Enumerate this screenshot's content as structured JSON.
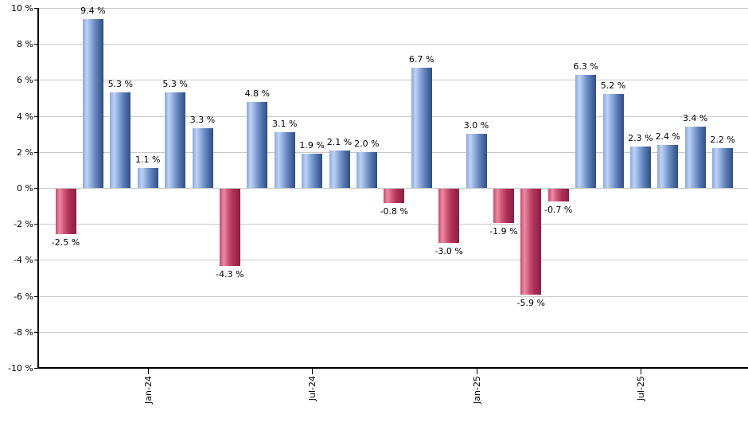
{
  "chart_data": {
    "type": "bar",
    "title": "",
    "unit": "%",
    "bars": [
      {
        "value": -2.5,
        "label": "-2.5 %"
      },
      {
        "value": 9.4,
        "label": "9.4 %"
      },
      {
        "value": 5.3,
        "label": "5.3 %"
      },
      {
        "value": 1.1,
        "label": "1.1 %"
      },
      {
        "value": 5.3,
        "label": "5.3 %"
      },
      {
        "value": 3.3,
        "label": "3.3 %"
      },
      {
        "value": -4.3,
        "label": "-4.3 %"
      },
      {
        "value": 4.8,
        "label": "4.8 %"
      },
      {
        "value": 3.1,
        "label": "3.1 %"
      },
      {
        "value": 1.9,
        "label": "1.9 %"
      },
      {
        "value": 2.1,
        "label": "2.1 %"
      },
      {
        "value": 2.0,
        "label": "2.0 %"
      },
      {
        "value": -0.8,
        "label": "-0.8 %"
      },
      {
        "value": 6.7,
        "label": "6.7 %"
      },
      {
        "value": -3.0,
        "label": "-3.0 %"
      },
      {
        "value": 3.0,
        "label": "3.0 %"
      },
      {
        "value": -1.9,
        "label": "-1.9 %"
      },
      {
        "value": -5.9,
        "label": "-5.9 %"
      },
      {
        "value": -0.7,
        "label": "-0.7 %"
      },
      {
        "value": 6.3,
        "label": "6.3 %"
      },
      {
        "value": 5.2,
        "label": "5.2 %"
      },
      {
        "value": 2.3,
        "label": "2.3 %"
      },
      {
        "value": 2.4,
        "label": "2.4 %"
      },
      {
        "value": 3.4,
        "label": "3.4 %"
      },
      {
        "value": 2.2,
        "label": "2.2 %"
      }
    ],
    "x_tick_labels": [
      {
        "bar_index": 3,
        "label": "Jan-24"
      },
      {
        "bar_index": 9,
        "label": "Jul-24"
      },
      {
        "bar_index": 15,
        "label": "Jan-25"
      },
      {
        "bar_index": 21,
        "label": "Jul-25"
      }
    ],
    "y_axis": {
      "min": -10,
      "max": 10,
      "step": 2,
      "tick_labels": [
        "10 %",
        "8 %",
        "6 %",
        "4 %",
        "2 %",
        "0 %",
        "-2 %",
        "-4 %",
        "-6 %",
        "-8 %",
        "-10 %"
      ]
    },
    "layout_hints": {
      "grid": true,
      "legend": false,
      "bar_label_position": "outside-end"
    },
    "colors": {
      "positive_gradient": [
        "#8aa9dd",
        "#bdd2f5",
        "#8fadde",
        "#5f80b8",
        "#2f4d87"
      ],
      "negative_gradient": [
        "#c54b6c",
        "#ee8ba6",
        "#cd577a",
        "#ad3156",
        "#8e1e40"
      ],
      "gridline": "#c9c9c9",
      "axis": "#000000",
      "background": "#ffffff",
      "label_text": "#000000"
    }
  }
}
